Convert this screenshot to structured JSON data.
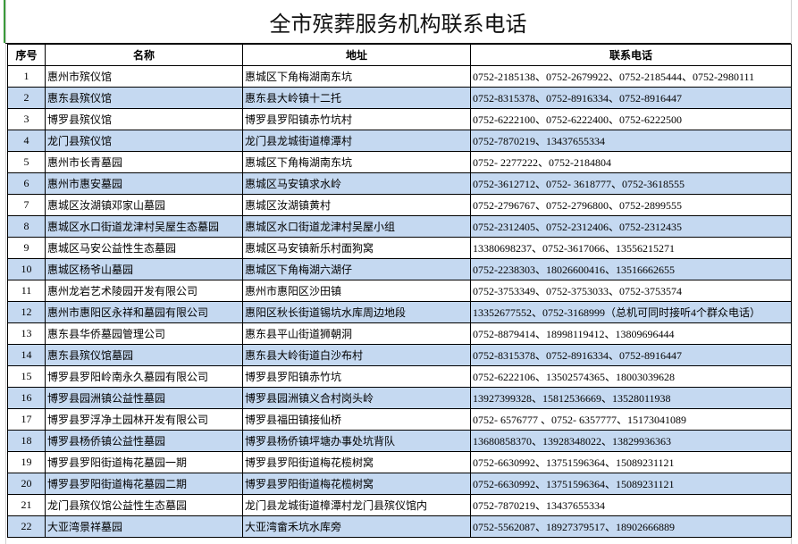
{
  "title": "全市殡葬服务机构联系电话",
  "headers": [
    "序号",
    "名称",
    "地址",
    "联系电话"
  ],
  "rows": [
    {
      "no": "1",
      "name": "惠州市殡仪馆",
      "address": "惠城区下角梅湖南东坑",
      "phone": "0752-2185138、0752-2679922、0752-2185444、0752-2980111"
    },
    {
      "no": "2",
      "name": "惠东县殡仪馆",
      "address": "惠东县大岭镇十二托",
      "phone": "0752-8315378、0752-8916334、0752-8916447"
    },
    {
      "no": "3",
      "name": "博罗县殡仪馆",
      "address": "博罗县罗阳镇赤竹坑村",
      "phone": "0752-6222100、0752-6222400、0752-6222500"
    },
    {
      "no": "4",
      "name": "龙门县殡仪馆",
      "address": "龙门县龙城街道樟潭村",
      "phone": "0752-7870219、13437655334"
    },
    {
      "no": "5",
      "name": "惠州市长青墓园",
      "address": "惠城区下角梅湖南东坑",
      "phone": "0752- 2277222、0752-2184804"
    },
    {
      "no": "6",
      "name": "惠州市惠安墓园",
      "address": "惠城区马安镇求水岭",
      "phone": " 0752-3612712、0752- 3618777、0752-3618555"
    },
    {
      "no": "7",
      "name": "惠城区汝湖镇邓家山墓园",
      "address": "惠城区汝湖镇黄村",
      "phone": "0752-2796767、0752-2796800、0752-2899555"
    },
    {
      "no": "8",
      "name": "惠城区水口街道龙津村吴屋生态墓园",
      "address": "惠城区水口街道龙津村吴屋小组",
      "phone": "0752-2312405、0752-2312406、0752-2312435"
    },
    {
      "no": "9",
      "name": "惠城区马安公益性生态墓园",
      "address": "惠城区马安镇新乐村面狗窝",
      "phone": "13380698237、0752-3617066、13556215271"
    },
    {
      "no": "10",
      "name": "惠城区杨爷山墓园",
      "address": "惠城区下角梅湖六湖仔",
      "phone": "0752-2238303、18026600416、13516662655"
    },
    {
      "no": "11",
      "name": "惠州龙岩艺术陵园开发有限公司",
      "address": "惠州市惠阳区沙田镇",
      "phone": "0752-3753349、0752-3753033、0752-3753574"
    },
    {
      "no": "12",
      "name": "惠州市惠阳区永祥和墓园有限公司",
      "address": "惠阳区秋长街道锡坑水库周边地段",
      "phone": "13352677552、0752-3168999（总机可同时接听4个群众电话）"
    },
    {
      "no": "13",
      "name": "惠东县华侨墓园管理公司",
      "address": "惠东县平山街道狮朝洞",
      "phone": "0752-8879414、18998119412、13809696444"
    },
    {
      "no": "14",
      "name": "惠东县殡仪馆墓园",
      "address": "惠东县大岭街道白沙布村",
      "phone": "0752-8315378、0752-8916334、0752-8916447"
    },
    {
      "no": "15",
      "name": "博罗县罗阳岭南永久墓园有限公司",
      "address": "博罗县罗阳镇赤竹坑",
      "phone": "0752-6222106、13502574365、18003039628"
    },
    {
      "no": "16",
      "name": "博罗县园洲镇公益性墓园",
      "address": "博罗县园洲镇义合村岗头岭",
      "phone": "13927399328、15812536669、13528011938"
    },
    {
      "no": "17",
      "name": "博罗县罗浮净土园林开发有限公司",
      "address": "博罗县福田镇接仙桥",
      "phone": "0752- 6576777 、0752- 6357777、15173041089"
    },
    {
      "no": "18",
      "name": "博罗县杨侨镇公益性墓园",
      "address": "博罗县杨侨镇坪塘办事处坑背队",
      "phone": "13680858370、13928348022、13829936363"
    },
    {
      "no": "19",
      "name": "博罗县罗阳街道梅花墓园一期",
      "address": "博罗县罗阳街道梅花榄树窝",
      "phone": "0752-6630992、13751596364、15089231121"
    },
    {
      "no": "20",
      "name": "博罗县罗阳街道梅花墓园二期",
      "address": "博罗县罗阳街道梅花榄树窝",
      "phone": "0752-6630992、13751596364、15089231121"
    },
    {
      "no": "21",
      "name": "龙门县殡仪馆公益性生态墓园",
      "address": "龙门县龙城街道樟潭村龙门县殡仪馆内",
      "phone": "0752-7870219、13437655334"
    },
    {
      "no": "22",
      "name": "大亚湾景祥墓园",
      "address": "大亚湾畲禾坑水库旁",
      "phone": "0752-5562087、18927379517、18902666889"
    }
  ],
  "colors": {
    "alt_row": "#c5d9f1",
    "border": "#000000"
  }
}
